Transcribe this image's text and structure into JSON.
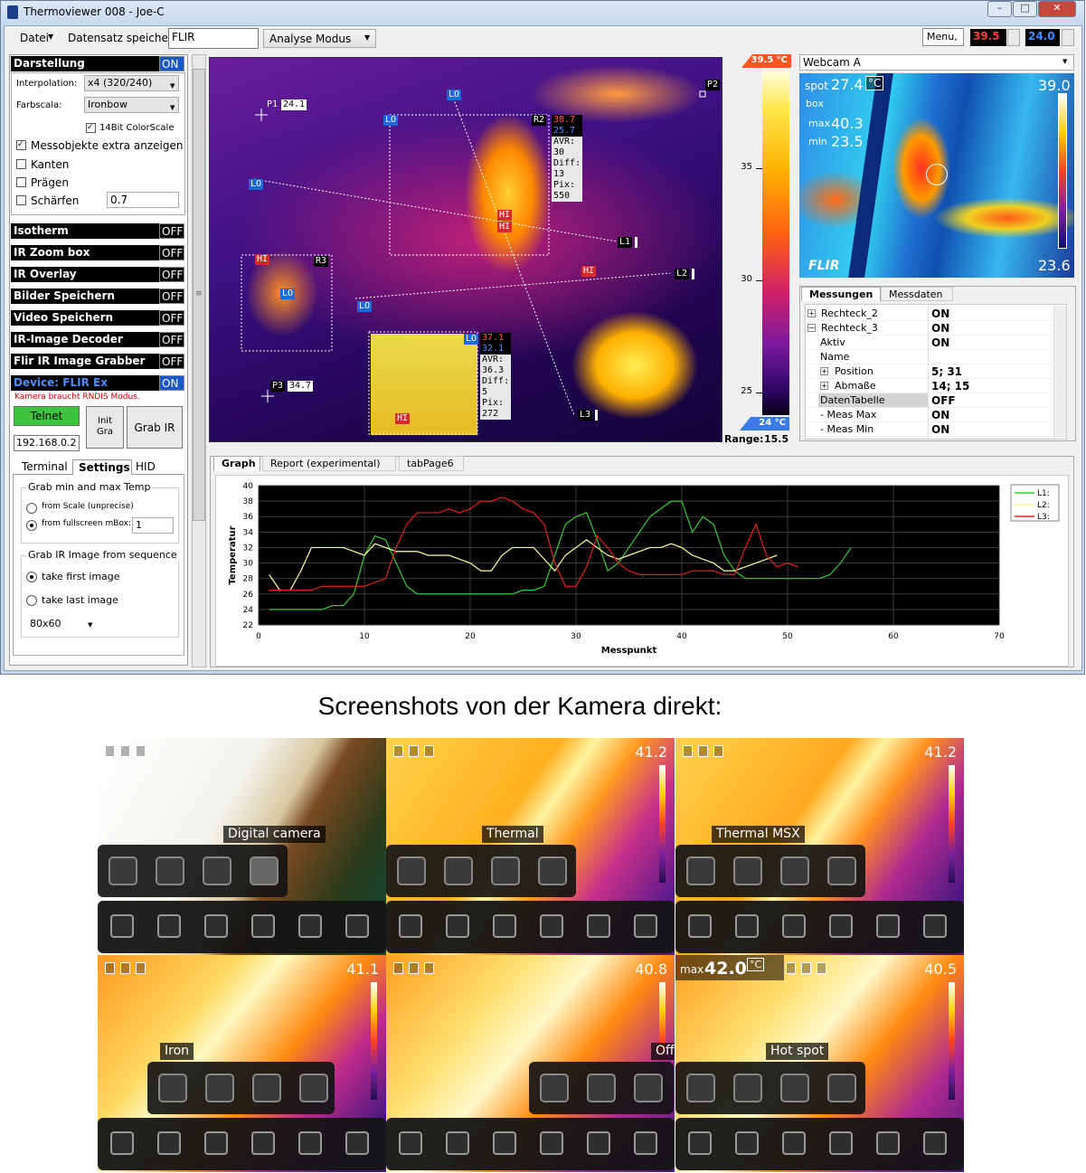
{
  "window": {
    "title": "Thermoviewer 008 - Joe-C"
  },
  "toolbar": {
    "file": "Datei",
    "save": "Datensatz speichern",
    "input": "FLIR",
    "mode": "Analyse Modus",
    "menu": "Menu,",
    "max": "39.5",
    "min": "24.0"
  },
  "left_panel": {
    "display": {
      "title": "Darstellung",
      "state": "ON",
      "interp_label": "Interpolation:",
      "interp": "x4 (320/240)",
      "scale_label": "Farbscala:",
      "scale": "Ironbow",
      "bit14": "14Bit ColorScale",
      "checks": [
        "Messobjekte extra anzeigen",
        "Kanten",
        "Prägen",
        "Schärfen"
      ],
      "sharpen": "0.7"
    },
    "toggles": [
      {
        "name": "Isotherm",
        "state": "OFF"
      },
      {
        "name": "IR Zoom box",
        "state": "OFF"
      },
      {
        "name": "IR Overlay",
        "state": "OFF"
      },
      {
        "name": "Bilder Speichern",
        "state": "OFF"
      },
      {
        "name": "Video Speichern",
        "state": "OFF"
      },
      {
        "name": "IR-Image Decoder",
        "state": "OFF"
      },
      {
        "name": "Flir IR Image Grabber",
        "state": "OFF"
      }
    ],
    "device": {
      "name": "Device: FLIR Ex",
      "state": "ON",
      "note": "Kamera braucht RNDIS Modus.",
      "telnet": "Telnet",
      "init": "Init Gra",
      "grab": "Grab IR",
      "ip": "192.168.0.2"
    },
    "tabs": [
      "Terminal",
      "Settings",
      "HID"
    ],
    "settings": {
      "group1": "Grab min and max Temp",
      "opt1": "from Scale (unprecise)",
      "opt2": "from fullscreen mBox:",
      "mbox": "1",
      "group2": "Grab IR Image from sequence",
      "opt3": "take first image",
      "opt4": "take last image",
      "res": "80x60"
    }
  },
  "thermal": {
    "markers": [
      {
        "id": "P1",
        "value": "24.1"
      },
      {
        "id": "P2"
      },
      {
        "id": "P3",
        "value": "34.7"
      }
    ],
    "rects": [
      {
        "id": "R2",
        "max": "38.7",
        "min": "25.7",
        "stats": [
          "AVR:",
          "30",
          "Diff:",
          "13",
          "Pix:",
          "550"
        ]
      },
      {
        "id": "R3"
      },
      {
        "max": "37.1",
        "min": "32.1",
        "stats": [
          "AVR:",
          "36.3",
          "Diff:",
          "5",
          "Pix:",
          "272"
        ]
      }
    ],
    "lines": [
      "L1",
      "L2",
      "L3"
    ],
    "lo": "LO",
    "hi": "HI"
  },
  "colorscale": {
    "top": {
      "value": 39.5,
      "label": "39.5 °C"
    },
    "bottom": {
      "value": 24,
      "label": "24 °C"
    },
    "ticks": [
      35,
      30,
      25
    ],
    "range_label": "Range:",
    "range": "15.5"
  },
  "webcam": {
    "source": "Webcam A",
    "spot_label": "spot",
    "spot": "27.4",
    "unit": "°C",
    "box": "box",
    "max_label": "max",
    "max": "40.3",
    "min_label": "min",
    "min": "23.5",
    "top": "39.0",
    "bottom": "23.6",
    "brand": "FLIR"
  },
  "properties": {
    "tabs": [
      "Messungen",
      "Messdaten"
    ],
    "rows": [
      {
        "name": "Rechteck_2",
        "value": "ON"
      },
      {
        "name": "Rechteck_3",
        "value": "ON"
      },
      {
        "name": "Aktiv",
        "value": "ON"
      },
      {
        "name": "Name"
      },
      {
        "name": "Position",
        "value": "5; 31"
      },
      {
        "name": "Abmaße",
        "value": "14; 15"
      },
      {
        "name": "DatenTabelle",
        "value": "OFF"
      },
      {
        "name": "- Meas Max",
        "value": "ON"
      },
      {
        "name": "- Meas Min",
        "value": "ON"
      }
    ]
  },
  "graph_tabs": [
    "Graph",
    "Report (experimental)",
    "tabPage6"
  ],
  "chart_data": {
    "type": "line",
    "ylabel": "Temperatur",
    "xlabel": "Messpunkt",
    "xlim": [
      0,
      70
    ],
    "ylim": [
      22,
      40
    ],
    "xticks": [
      0,
      10,
      20,
      30,
      40,
      50,
      60,
      70
    ],
    "yticks": [
      22,
      24,
      26,
      28,
      30,
      32,
      34,
      36,
      38,
      40
    ],
    "grid": true,
    "x": [
      1,
      2,
      3,
      4,
      5,
      6,
      7,
      8,
      9,
      10,
      11,
      12,
      13,
      14,
      15,
      16,
      17,
      18,
      19,
      20,
      21,
      22,
      23,
      24,
      25,
      26,
      27,
      28,
      29,
      30,
      31,
      32,
      33,
      34,
      35,
      36,
      37,
      38,
      39,
      40,
      41,
      42,
      43,
      44,
      45,
      46,
      47,
      48,
      49,
      50,
      51,
      52,
      53,
      54,
      55,
      56
    ],
    "series": [
      {
        "name": "L1:",
        "color": "#33cc33",
        "values": [
          24,
          24,
          24,
          24,
          24,
          24,
          24.5,
          24.5,
          26,
          31,
          33.5,
          33,
          30,
          27,
          26,
          26,
          26,
          26,
          26,
          26,
          26,
          26,
          26,
          26,
          26.5,
          26.5,
          27,
          31,
          35,
          36,
          36.5,
          33,
          29,
          30,
          32,
          34,
          36,
          37,
          38,
          38,
          34,
          36,
          35,
          31,
          29,
          28,
          28,
          28,
          28,
          28,
          28,
          28,
          28,
          28.5,
          30,
          32
        ]
      },
      {
        "name": "L2:",
        "color": "#ffff99",
        "values": [
          28.5,
          26.5,
          26.5,
          29,
          32,
          32,
          32,
          32,
          31.5,
          31,
          32.5,
          32,
          31.5,
          31.5,
          31.5,
          31,
          31,
          31,
          30.5,
          30,
          29,
          29,
          31,
          32,
          32,
          32,
          30.5,
          29,
          31,
          32,
          33,
          32,
          31,
          30.5,
          31,
          31.5,
          32,
          32,
          32.5,
          32,
          31,
          30.5,
          30,
          29,
          29,
          29.5,
          30,
          30.5,
          31,
          null,
          null,
          null,
          null,
          null,
          null,
          null
        ]
      },
      {
        "name": "L3:",
        "color": "#e02020",
        "values": [
          26.5,
          26.5,
          26.5,
          26.5,
          26.5,
          27,
          27,
          27,
          27,
          27,
          27.5,
          28,
          32,
          35,
          36.5,
          36.5,
          36.5,
          37,
          36.5,
          37,
          38,
          38,
          38.5,
          38,
          37,
          36.5,
          35,
          30,
          27,
          27,
          29.5,
          33.5,
          32,
          30,
          29,
          28.5,
          28.5,
          28.5,
          28.5,
          28.5,
          29,
          29,
          29,
          28.5,
          28.5,
          32,
          35,
          31,
          29.5,
          30,
          29.5,
          null,
          null,
          null,
          null,
          null
        ]
      }
    ]
  },
  "caption": "Screenshots von der Kamera direkt:",
  "camera_shots": [
    {
      "label": "Digital camera"
    },
    {
      "label": "Thermal",
      "temp": "41.2"
    },
    {
      "label": "Thermal MSX",
      "temp": "41.2"
    },
    {
      "label": "Iron",
      "temp": "41.1"
    },
    {
      "label": "Off",
      "temp": "40.8"
    },
    {
      "label": "Hot spot",
      "temp": "40.5",
      "max_label": "max",
      "max": "42.0",
      "unit": "°C"
    }
  ]
}
